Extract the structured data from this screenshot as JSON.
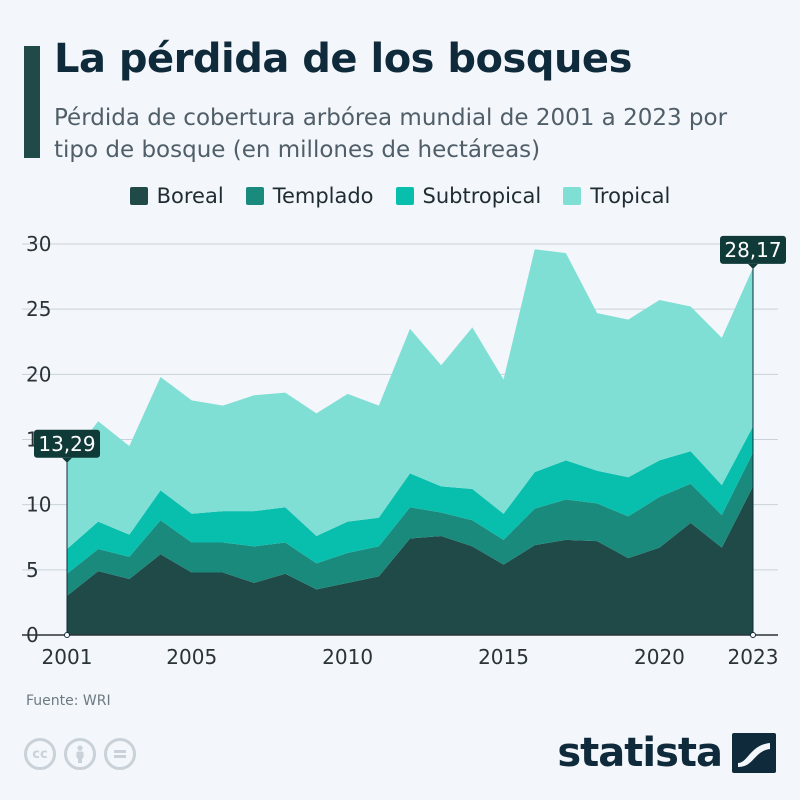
{
  "header": {
    "title": "La pérdida de los bosques",
    "subtitle": "Pérdida de cobertura arbórea mundial de 2001 a 2023 por tipo de bosque (en millones de hectáreas)"
  },
  "legend": [
    {
      "label": "Boreal",
      "color": "#1f4a48"
    },
    {
      "label": "Templado",
      "color": "#1a8a7d"
    },
    {
      "label": "Subtropical",
      "color": "#08bfae"
    },
    {
      "label": "Tropical",
      "color": "#7fdfd5"
    }
  ],
  "chart_data": {
    "type": "area",
    "stacked": true,
    "title": "La pérdida de los bosques",
    "subtitle": "Pérdida de cobertura arbórea mundial de 2001 a 2023 por tipo de bosque (en millones de hectáreas)",
    "x": [
      2001,
      2002,
      2003,
      2004,
      2005,
      2006,
      2007,
      2008,
      2009,
      2010,
      2011,
      2012,
      2013,
      2014,
      2015,
      2016,
      2017,
      2018,
      2019,
      2020,
      2021,
      2022,
      2023
    ],
    "x_tick_labels": [
      "2001",
      "2005",
      "2010",
      "2015",
      "2020",
      "2023"
    ],
    "x_ticks": [
      2001,
      2005,
      2010,
      2015,
      2020,
      2023
    ],
    "y_ticks": [
      0,
      5,
      10,
      15,
      20,
      25,
      30
    ],
    "ylim": [
      0,
      30
    ],
    "grid": true,
    "legend_position": "top",
    "series": [
      {
        "name": "Boreal",
        "color": "#1f4a48",
        "values": [
          3.0,
          4.9,
          4.3,
          6.2,
          4.8,
          4.8,
          4.0,
          4.7,
          3.5,
          4.0,
          4.5,
          7.4,
          7.6,
          6.8,
          5.4,
          6.9,
          7.3,
          7.2,
          5.9,
          6.7,
          8.6,
          6.7,
          11.4
        ]
      },
      {
        "name": "Templado",
        "color": "#1a8a7d",
        "values": [
          1.7,
          1.7,
          1.7,
          2.6,
          2.3,
          2.3,
          2.8,
          2.4,
          2.0,
          2.3,
          2.3,
          2.4,
          1.8,
          2.0,
          1.9,
          2.8,
          3.1,
          2.9,
          3.2,
          3.9,
          3.0,
          2.5,
          2.6
        ]
      },
      {
        "name": "Subtropical",
        "color": "#08bfae",
        "values": [
          1.9,
          2.1,
          1.7,
          2.3,
          2.2,
          2.4,
          2.7,
          2.7,
          2.1,
          2.4,
          2.2,
          2.6,
          2.0,
          2.4,
          2.0,
          2.8,
          3.0,
          2.5,
          3.0,
          2.8,
          2.5,
          2.3,
          2.0
        ]
      },
      {
        "name": "Tropical",
        "color": "#7fdfd5",
        "values": [
          6.69,
          7.7,
          6.8,
          8.7,
          8.7,
          8.1,
          8.9,
          8.8,
          9.4,
          9.8,
          8.6,
          11.1,
          9.3,
          12.4,
          10.3,
          17.1,
          15.9,
          12.1,
          12.1,
          12.3,
          11.1,
          11.3,
          12.17
        ]
      }
    ],
    "annotations": [
      {
        "label": "13,29",
        "x": 2001,
        "value": 13.29
      },
      {
        "label": "28,17",
        "x": 2023,
        "value": 28.17
      }
    ]
  },
  "footer": {
    "source": "Fuente: WRI",
    "brand": "statista",
    "license_icons": [
      "cc-icon",
      "person-icon",
      "equals-icon"
    ]
  }
}
